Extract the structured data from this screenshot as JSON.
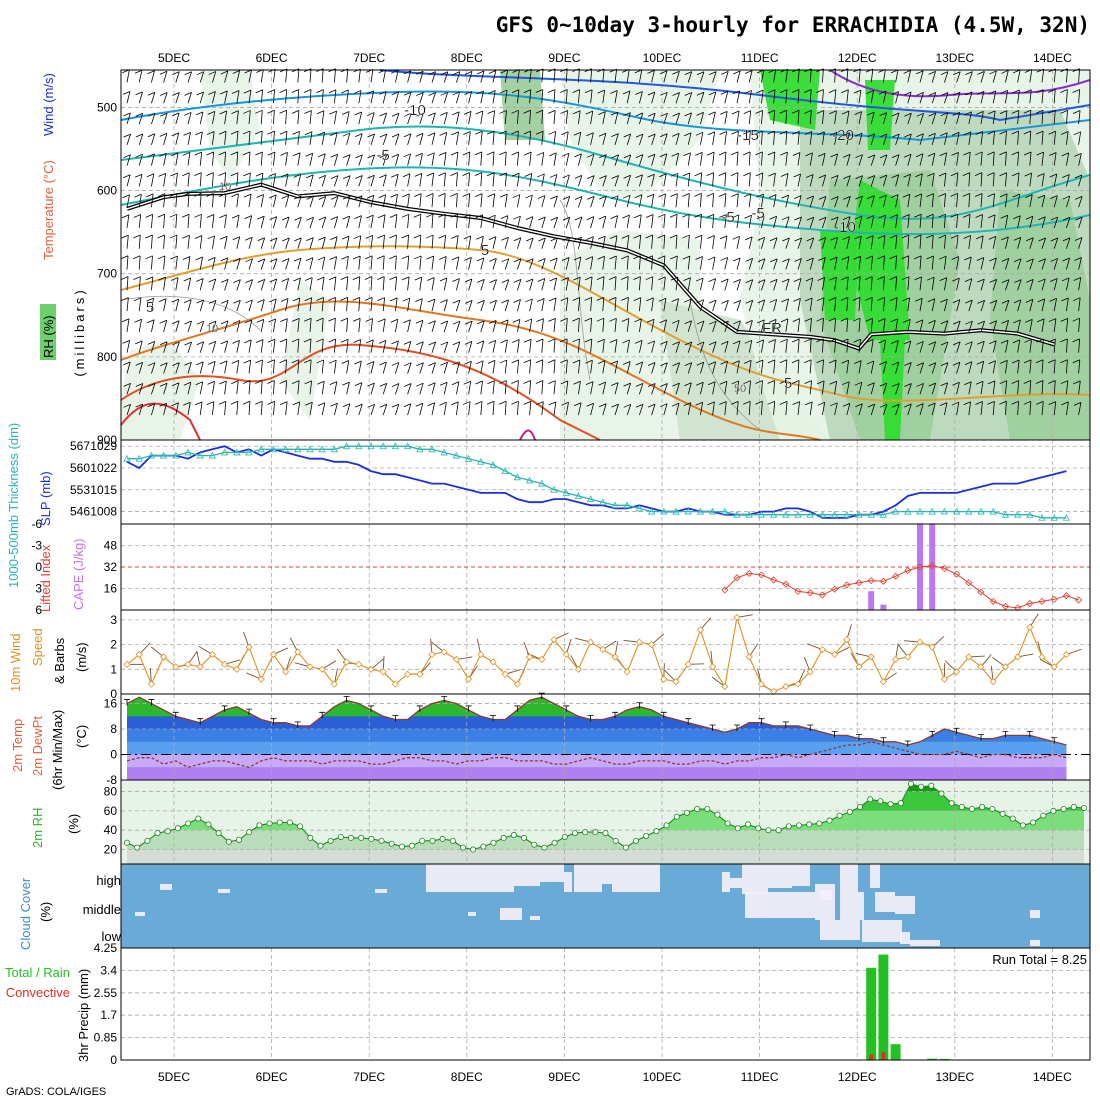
{
  "title": "GFS 0~10day 3-hourly for ERRACHIDIA (4.5W, 32N)",
  "footer": "GrADS: COLA/IGES",
  "date_labels": [
    "5DEC",
    "6DEC",
    "7DEC",
    "8DEC",
    "9DEC",
    "10DEC",
    "11DEC",
    "12DEC",
    "13DEC",
    "14DEC"
  ],
  "colors": {
    "rh_green_light": "#e6f3e6",
    "rh_green_mid": "#9ecf9e",
    "rh_green_bright": "#32dc32",
    "slp_line": "#1a2fd6",
    "thickness_line": "#2ab4b4",
    "cape_bar": "#c076f0",
    "lifted_index": "#e04030",
    "wind_speed": "#e09020",
    "temp_fill_green": "#2cb82c",
    "temp_fill_blue": "#3a7ee6",
    "dewpoint_purple": "#b080f0",
    "cloud_blue": "#6aaad6",
    "cloud_white": "#f4f0f8",
    "precip_green": "#22c022",
    "precip_red": "#e03020"
  },
  "chart_data": [
    {
      "id": "upper-air",
      "type": "heatmap",
      "ylabel_parts": [
        "RH (%)",
        "Temperature (°C)",
        "Wind (m/s)"
      ],
      "ylabel_unit": "(millibars)",
      "yticks": [
        500,
        600,
        700,
        800,
        900
      ],
      "ylim": [
        455,
        900
      ],
      "contour_labels": [
        "-10",
        "-15",
        "-20",
        "-5",
        "-5",
        "-10",
        "-5",
        "5",
        "5",
        "5",
        "FR",
        "10",
        "10",
        "50"
      ],
      "freezing_level": [
        {
          "t": 0,
          "p": 622
        },
        {
          "t": 3,
          "p": 608
        },
        {
          "t": 5,
          "p": 604
        },
        {
          "t": 8,
          "p": 603
        },
        {
          "t": 11,
          "p": 593
        },
        {
          "t": 14,
          "p": 607
        },
        {
          "t": 17,
          "p": 603
        },
        {
          "t": 20,
          "p": 614
        },
        {
          "t": 23,
          "p": 622
        },
        {
          "t": 26,
          "p": 628
        },
        {
          "t": 29,
          "p": 633
        },
        {
          "t": 32,
          "p": 645
        },
        {
          "t": 35,
          "p": 655
        },
        {
          "t": 38,
          "p": 663
        },
        {
          "t": 41,
          "p": 672
        },
        {
          "t": 44,
          "p": 690
        },
        {
          "t": 47,
          "p": 740
        },
        {
          "t": 50,
          "p": 770
        },
        {
          "t": 53,
          "p": 773
        },
        {
          "t": 56,
          "p": 776
        },
        {
          "t": 58,
          "p": 780
        },
        {
          "t": 60,
          "p": 790
        },
        {
          "t": 61,
          "p": 773
        },
        {
          "t": 64,
          "p": 770
        },
        {
          "t": 67,
          "p": 772
        },
        {
          "t": 70,
          "p": 768
        },
        {
          "t": 73,
          "p": 772
        },
        {
          "t": 76,
          "p": 785
        }
      ]
    },
    {
      "id": "slp-thickness",
      "type": "line",
      "ylabel_left": "1000-500mb Thickness (dm)",
      "ylabel_right": "SLP (mb)",
      "yticks_thickness": [
        567,
        560,
        553,
        546
      ],
      "yticks_slp": [
        1029,
        1022,
        1015,
        1008
      ],
      "slp_ylim": [
        1004,
        1031
      ],
      "series": [
        {
          "name": "SLP (mb)",
          "values": [
            1024,
            1022,
            1026,
            1026,
            1026,
            1025,
            1027,
            1028,
            1029,
            1027,
            1028,
            1026,
            1028,
            1027,
            1026,
            1025,
            1025,
            1024,
            1024,
            1023,
            1021,
            1020,
            1020,
            1019,
            1018,
            1017,
            1017,
            1016,
            1015,
            1014,
            1014,
            1014,
            1012,
            1011,
            1011,
            1012,
            1012,
            1011,
            1010,
            1010,
            1009,
            1009,
            1010,
            1009,
            1008,
            1008,
            1009,
            1008,
            1008,
            1007,
            1007,
            1007,
            1008,
            1008,
            1009,
            1009,
            1008,
            1006,
            1006,
            1006,
            1007,
            1007,
            1008,
            1010,
            1013,
            1014,
            1014,
            1014,
            1014,
            1015,
            1016,
            1017,
            1017,
            1017,
            1018,
            1019,
            1020,
            1021
          ]
        },
        {
          "name": "1000-500mb Thickness (dm)",
          "values": [
            1025,
            1025,
            1026,
            1026,
            1026,
            1027,
            1026,
            1026,
            1027,
            1027,
            1027,
            1028,
            1028,
            1028,
            1028,
            1028,
            1028,
            1028,
            1029,
            1029,
            1029,
            1029,
            1029,
            1029,
            1028,
            1028,
            1027,
            1026,
            1025,
            1024,
            1023,
            1021,
            1019,
            1018,
            1017,
            1015,
            1014,
            1013,
            1012,
            1011,
            1010,
            1010,
            1009,
            1008,
            1008,
            1008,
            1008,
            1008,
            1008,
            1008,
            1007,
            1007,
            1007,
            1007,
            1007,
            1007,
            1007,
            1007,
            1007,
            1007,
            1007,
            1007,
            1007,
            1008,
            1008,
            1008,
            1008,
            1008,
            1008,
            1008,
            1008,
            1008,
            1007,
            1007,
            1007,
            1006,
            1006,
            1006
          ]
        }
      ]
    },
    {
      "id": "cape-li",
      "type": "bar",
      "ylabel_left": "Lifted Index",
      "ylabel_right": "CAPE (J/kg)",
      "yticks_li": [
        "-6",
        "-3",
        "0",
        "3",
        "6"
      ],
      "yticks_cape": [
        "48",
        "32",
        "16"
      ],
      "cape_ylim": [
        0,
        64
      ],
      "cape_values": [
        {
          "t": 61,
          "v": 14
        },
        {
          "t": 62,
          "v": 4
        },
        {
          "t": 65,
          "v": 64
        },
        {
          "t": 66,
          "v": 64
        }
      ],
      "lifted_index": [
        {
          "t": 49,
          "v": 3.2
        },
        {
          "t": 50,
          "v": 1.5
        },
        {
          "t": 51,
          "v": 0.9
        },
        {
          "t": 52,
          "v": 1.1
        },
        {
          "t": 53,
          "v": 1.8
        },
        {
          "t": 54,
          "v": 2.4
        },
        {
          "t": 55,
          "v": 3.4
        },
        {
          "t": 56,
          "v": 3.6
        },
        {
          "t": 57,
          "v": 3.9
        },
        {
          "t": 58,
          "v": 3.1
        },
        {
          "t": 59,
          "v": 2.5
        },
        {
          "t": 60,
          "v": 2.2
        },
        {
          "t": 61,
          "v": 1.9
        },
        {
          "t": 62,
          "v": 2.0
        },
        {
          "t": 63,
          "v": 1.3
        },
        {
          "t": 64,
          "v": 0.5
        },
        {
          "t": 65,
          "v": 0.0
        },
        {
          "t": 66,
          "v": -0.2
        },
        {
          "t": 67,
          "v": 0.2
        },
        {
          "t": 68,
          "v": 1.0
        },
        {
          "t": 69,
          "v": 2.2
        },
        {
          "t": 70,
          "v": 3.5
        },
        {
          "t": 71,
          "v": 4.8
        },
        {
          "t": 72,
          "v": 5.5
        },
        {
          "t": 73,
          "v": 5.7
        },
        {
          "t": 74,
          "v": 5.1
        },
        {
          "t": 75,
          "v": 4.8
        },
        {
          "t": 76,
          "v": 4.5
        },
        {
          "t": 77,
          "v": 4.0
        },
        {
          "t": 78,
          "v": 4.6
        }
      ]
    },
    {
      "id": "wind10m",
      "type": "line",
      "ylabel": "10m Wind Speed & Barbs (m/s)",
      "yticks": [
        0,
        1,
        2,
        3
      ],
      "ylim": [
        0,
        3.4
      ],
      "series": [
        {
          "name": "10m Wind Speed",
          "values": [
            1.2,
            1.6,
            0.4,
            1.5,
            1.1,
            1.2,
            1.1,
            1.6,
            1.2,
            1.0,
            1.9,
            0.6,
            1.6,
            0.9,
            1.7,
            1.1,
            1.0,
            0.4,
            1.3,
            1.2,
            1.0,
            0.9,
            0.4,
            0.8,
            0.8,
            1.6,
            1.7,
            1.4,
            0.6,
            1.6,
            1.3,
            0.8,
            0.4,
            1.5,
            1.4,
            2.2,
            1.6,
            1.0,
            2.1,
            1.8,
            1.5,
            0.9,
            2.1,
            2.0,
            0.6,
            0.5,
            1.2,
            2.6,
            1.1,
            0.3,
            3.1,
            1.5,
            0.4,
            0.1,
            0.3,
            0.4,
            0.9,
            1.8,
            1.6,
            2.2,
            1.1,
            1.5,
            0.5,
            1.4,
            1.5,
            2.1,
            1.9,
            0.6,
            0.9,
            1.5,
            1.1,
            0.5,
            1.1,
            1.5,
            2.7,
            1.5,
            1.1,
            1.6
          ]
        }
      ]
    },
    {
      "id": "temp-dewpt",
      "type": "area",
      "ylabel": "2m Temp 2m DewPt (6hr Min/Max) (°C)",
      "yticks": [
        16,
        8,
        0,
        -8
      ],
      "ylim": [
        -8,
        19
      ],
      "series": [
        {
          "name": "2m Temp",
          "values": [
            16,
            18,
            16,
            14,
            12,
            11,
            10,
            12,
            14,
            15,
            13,
            11,
            10,
            10,
            9,
            9,
            12,
            15,
            17,
            16,
            14,
            12,
            11,
            11,
            14,
            16,
            17,
            16,
            14,
            12,
            11,
            11,
            14,
            17,
            18,
            16,
            14,
            12,
            11,
            11,
            12,
            14,
            15,
            14,
            12,
            11,
            10,
            9,
            8,
            7,
            8,
            10,
            10,
            9,
            9,
            9,
            8,
            7,
            6,
            6,
            5,
            5,
            4,
            4,
            3,
            4,
            6,
            8,
            7,
            6,
            5,
            5,
            6,
            6,
            6,
            5,
            4,
            3
          ]
        },
        {
          "name": "2m DewPt",
          "values": [
            -2,
            -1,
            -1,
            -3,
            -2,
            -4,
            -3,
            -2,
            -2,
            -3,
            -4,
            -2,
            -1,
            -2,
            -2,
            -2,
            -3,
            -2,
            -2,
            -2,
            -3,
            -3,
            -2,
            -1,
            -1,
            -2,
            -2,
            -3,
            -2,
            -2,
            -1,
            -1,
            -2,
            -2,
            -2,
            -3,
            -3,
            -2,
            -1,
            -2,
            -3,
            -3,
            -2,
            -2,
            -2,
            -3,
            -3,
            -2,
            -2,
            -3,
            -2,
            -2,
            -1,
            -1,
            0,
            -1,
            0,
            1,
            2,
            3,
            3,
            4,
            3,
            2,
            1,
            0,
            0,
            0,
            1,
            0,
            -1,
            0,
            0,
            -1,
            -1,
            -1,
            0,
            -1
          ]
        }
      ]
    },
    {
      "id": "rh2m",
      "type": "area",
      "ylabel": "2m RH (%)",
      "yticks": [
        20,
        40,
        60,
        80
      ],
      "ylim": [
        5,
        92
      ],
      "series": [
        {
          "name": "2m RH",
          "values": [
            27,
            22,
            29,
            37,
            39,
            42,
            47,
            52,
            46,
            37,
            28,
            30,
            38,
            45,
            47,
            48,
            48,
            44,
            32,
            24,
            29,
            33,
            32,
            32,
            31,
            29,
            26,
            23,
            24,
            29,
            29,
            31,
            29,
            22,
            20,
            23,
            27,
            32,
            35,
            32,
            25,
            22,
            27,
            33,
            37,
            38,
            38,
            37,
            29,
            22,
            29,
            34,
            39,
            45,
            54,
            58,
            62,
            62,
            56,
            47,
            42,
            46,
            42,
            40,
            40,
            44,
            45,
            46,
            47,
            50,
            55,
            59,
            64,
            72,
            70,
            67,
            68,
            88,
            85,
            86,
            78,
            68,
            64,
            62,
            64,
            62,
            57,
            52,
            45,
            48,
            55,
            60,
            62,
            64,
            63
          ]
        }
      ]
    },
    {
      "id": "cloud-cover",
      "type": "heatmap",
      "ylabel": "Cloud Cover (%)",
      "rows": [
        "high",
        "middle",
        "low"
      ]
    },
    {
      "id": "precip",
      "type": "bar",
      "ylabel": "Total / Rain Convective 3hr Precip (mm)",
      "yticks": [
        "4.25",
        "3.4",
        "2.55",
        "1.7",
        "0.85",
        "0"
      ],
      "ylim": [
        0,
        4.25
      ],
      "run_total_label": "Run Total = 8.25",
      "total_values": [
        {
          "t": 61,
          "v": 3.5
        },
        {
          "t": 62,
          "v": 4.0
        },
        {
          "t": 63,
          "v": 0.6
        },
        {
          "t": 64,
          "v": 0.0
        },
        {
          "t": 65,
          "v": 0.0
        },
        {
          "t": 66,
          "v": 0.05
        },
        {
          "t": 67,
          "v": 0.04
        }
      ],
      "convective_values": [
        {
          "t": 61,
          "v": 0.2
        },
        {
          "t": 62,
          "v": 0.3
        }
      ]
    }
  ],
  "legend_labels": {
    "rh": "RH (%)",
    "temperature": "Temperature (°C)",
    "wind": "Wind (m/s)",
    "millibars": "(millibars)",
    "thickness": "1000-500mb Thickness (dm)",
    "slp": "SLP (mb)",
    "li": "Lifted Index",
    "cape": "CAPE (J/kg)",
    "wind10_a": "10m Wind",
    "wind10_b": "Speed",
    "wind10_c": "& Barbs",
    "wind10_d": "(m/s)",
    "temp_a": "2m Temp",
    "temp_b": "2m DewPt",
    "temp_c": "(6hr Min/Max)",
    "temp_d": "(°C)",
    "rh2_a": "2m RH",
    "rh2_b": "(%)",
    "cloud_a": "Cloud Cover",
    "cloud_b": "(%)",
    "precip_a": "Total / Rain",
    "precip_b": "Convective",
    "precip_c": "3hr Precip (mm)"
  }
}
